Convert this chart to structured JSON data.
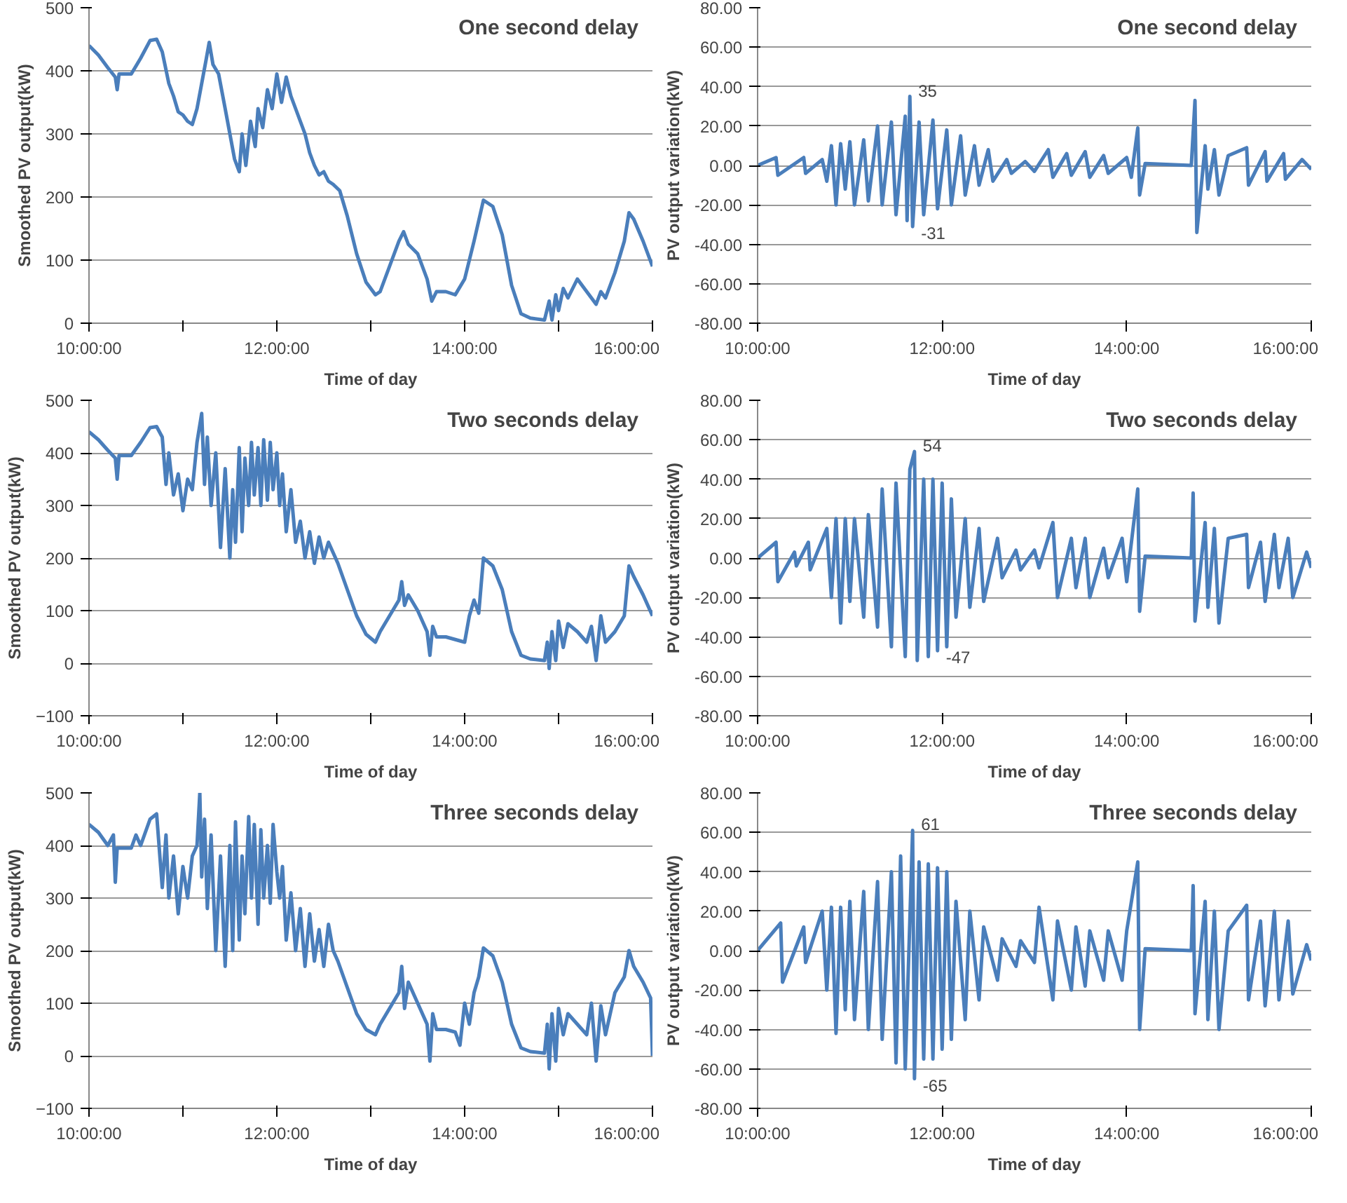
{
  "chart_data": [
    {
      "type": "line",
      "title": "One second delay",
      "xlabel": "Time of day",
      "ylabel": "Smoothed PV output(kW)",
      "color": "#4a7ebb",
      "xlim": [
        10,
        16
      ],
      "xticks": [
        {
          "value": 10,
          "label": "10:00:00"
        },
        {
          "value": 11,
          "label": null
        },
        {
          "value": 12,
          "label": "12:00:00"
        },
        {
          "value": 13,
          "label": null
        },
        {
          "value": 14,
          "label": "14:00:00"
        },
        {
          "value": 15,
          "label": null
        },
        {
          "value": 16,
          "label": "16:00:00"
        }
      ],
      "ylim": [
        0,
        500
      ],
      "yticks": [
        0,
        100,
        200,
        300,
        400,
        500
      ],
      "grid": "y",
      "x": [
        10.0,
        10.1,
        10.2,
        10.28,
        10.3,
        10.32,
        10.45,
        10.55,
        10.65,
        10.72,
        10.78,
        10.85,
        10.9,
        10.95,
        11.0,
        11.05,
        11.1,
        11.15,
        11.2,
        11.25,
        11.28,
        11.32,
        11.38,
        11.45,
        11.5,
        11.55,
        11.6,
        11.63,
        11.67,
        11.72,
        11.77,
        11.8,
        11.85,
        11.9,
        11.95,
        12.0,
        12.05,
        12.1,
        12.15,
        12.2,
        12.25,
        12.3,
        12.35,
        12.4,
        12.45,
        12.5,
        12.55,
        12.6,
        12.67,
        12.75,
        12.85,
        12.95,
        13.05,
        13.1,
        13.2,
        13.3,
        13.35,
        13.4,
        13.5,
        13.6,
        13.65,
        13.7,
        13.8,
        13.9,
        14.0,
        14.1,
        14.2,
        14.3,
        14.4,
        14.5,
        14.6,
        14.7,
        14.85,
        14.9,
        14.93,
        14.97,
        15.0,
        15.05,
        15.1,
        15.2,
        15.3,
        15.4,
        15.45,
        15.5,
        15.6,
        15.7,
        15.75,
        15.8,
        15.9,
        16.0
      ],
      "values": [
        440,
        425,
        405,
        390,
        370,
        395,
        395,
        420,
        448,
        450,
        430,
        380,
        360,
        335,
        330,
        320,
        315,
        340,
        380,
        420,
        445,
        410,
        395,
        340,
        300,
        260,
        240,
        300,
        250,
        320,
        280,
        340,
        310,
        370,
        340,
        395,
        350,
        390,
        360,
        340,
        320,
        300,
        270,
        250,
        235,
        240,
        225,
        220,
        210,
        170,
        110,
        65,
        45,
        50,
        90,
        130,
        145,
        125,
        110,
        70,
        35,
        50,
        50,
        45,
        70,
        130,
        195,
        185,
        140,
        60,
        15,
        8,
        5,
        35,
        5,
        45,
        20,
        55,
        40,
        70,
        50,
        30,
        50,
        40,
        80,
        130,
        175,
        165,
        130,
        90
      ]
    },
    {
      "type": "line",
      "title": "One second delay",
      "xlabel": "Time of day",
      "ylabel": "PV output variation(kW)",
      "color": "#4a7ebb",
      "xlim": [
        10,
        16
      ],
      "xticks": [
        {
          "value": 10,
          "label": "10:00:00"
        },
        {
          "value": 12,
          "label": "12:00:00"
        },
        {
          "value": 14,
          "label": "14:00:00"
        },
        {
          "value": 16,
          "label": "16:00:00"
        }
      ],
      "ylim": [
        -80,
        80
      ],
      "yticks": [
        {
          "value": -80,
          "label": "-80.00"
        },
        {
          "value": -60,
          "label": "-60.00"
        },
        {
          "value": -40,
          "label": "-40.00"
        },
        {
          "value": -20,
          "label": "-20.00"
        },
        {
          "value": 0,
          "label": "0.00"
        },
        {
          "value": 20,
          "label": "20.00"
        },
        {
          "value": 40,
          "label": "40.00"
        },
        {
          "value": 60,
          "label": "60.00"
        },
        {
          "value": 80,
          "label": "80.00"
        }
      ],
      "grid": "y",
      "annotations": [
        {
          "text": "35",
          "x": 11.65,
          "y": 35
        },
        {
          "text": "-31",
          "x": 11.68,
          "y": -31
        }
      ],
      "x": [
        10.0,
        10.2,
        10.22,
        10.5,
        10.52,
        10.7,
        10.75,
        10.8,
        10.85,
        10.9,
        10.95,
        11.0,
        11.05,
        11.15,
        11.2,
        11.3,
        11.35,
        11.45,
        11.5,
        11.6,
        11.62,
        11.65,
        11.68,
        11.75,
        11.8,
        11.9,
        11.95,
        12.05,
        12.1,
        12.2,
        12.25,
        12.35,
        12.4,
        12.5,
        12.55,
        12.7,
        12.75,
        12.9,
        13.0,
        13.15,
        13.2,
        13.35,
        13.4,
        13.55,
        13.6,
        13.75,
        13.8,
        14.0,
        14.05,
        14.12,
        14.14,
        14.2,
        14.7,
        14.74,
        14.76,
        14.85,
        14.88,
        14.95,
        15.0,
        15.1,
        15.3,
        15.32,
        15.5,
        15.52,
        15.7,
        15.72,
        15.9,
        16.0
      ],
      "values": [
        0,
        4,
        -5,
        4,
        -4,
        3,
        -8,
        10,
        -20,
        11,
        -12,
        12,
        -20,
        13,
        -18,
        20,
        -20,
        22,
        -25,
        25,
        -28,
        35,
        -31,
        22,
        -25,
        23,
        -22,
        18,
        -20,
        15,
        -15,
        10,
        -10,
        8,
        -8,
        3,
        -4,
        2,
        -3,
        8,
        -6,
        6,
        -5,
        7,
        -6,
        5,
        -4,
        4,
        -6,
        19,
        -15,
        1,
        0,
        33,
        -34,
        10,
        -12,
        8,
        -15,
        5,
        9,
        -10,
        7,
        -8,
        6,
        -7,
        3,
        -2
      ]
    },
    {
      "type": "line",
      "title": "Two seconds delay",
      "xlabel": "Time of day",
      "ylabel": "Smoothed PV output(kW)",
      "color": "#4a7ebb",
      "xlim": [
        10,
        16
      ],
      "xticks": [
        {
          "value": 10,
          "label": "10:00:00"
        },
        {
          "value": 11,
          "label": null
        },
        {
          "value": 12,
          "label": "12:00:00"
        },
        {
          "value": 13,
          "label": null
        },
        {
          "value": 14,
          "label": "14:00:00"
        },
        {
          "value": 15,
          "label": null
        },
        {
          "value": 16,
          "label": "16:00:00"
        }
      ],
      "ylim": [
        -100,
        500
      ],
      "yticks": [
        -100,
        0,
        100,
        200,
        300,
        400,
        500
      ],
      "grid": "y",
      "x": [
        10.0,
        10.1,
        10.2,
        10.28,
        10.3,
        10.32,
        10.45,
        10.55,
        10.65,
        10.72,
        10.78,
        10.82,
        10.85,
        10.9,
        10.95,
        11.0,
        11.05,
        11.1,
        11.15,
        11.2,
        11.23,
        11.26,
        11.3,
        11.35,
        11.4,
        11.45,
        11.5,
        11.53,
        11.56,
        11.6,
        11.63,
        11.66,
        11.7,
        11.73,
        11.76,
        11.8,
        11.83,
        11.86,
        11.9,
        11.93,
        11.96,
        12.0,
        12.03,
        12.06,
        12.1,
        12.15,
        12.2,
        12.25,
        12.3,
        12.35,
        12.4,
        12.45,
        12.5,
        12.55,
        12.6,
        12.65,
        12.75,
        12.85,
        12.95,
        13.05,
        13.1,
        13.2,
        13.3,
        13.33,
        13.36,
        13.4,
        13.5,
        13.6,
        13.63,
        13.66,
        13.7,
        13.8,
        13.9,
        14.0,
        14.05,
        14.1,
        14.15,
        14.2,
        14.3,
        14.4,
        14.5,
        14.6,
        14.7,
        14.85,
        14.88,
        14.9,
        14.93,
        14.97,
        15.0,
        15.05,
        15.1,
        15.2,
        15.3,
        15.35,
        15.4,
        15.45,
        15.5,
        15.6,
        15.7,
        15.75,
        15.8,
        15.9,
        16.0
      ],
      "values": [
        440,
        425,
        405,
        390,
        350,
        395,
        395,
        420,
        448,
        450,
        430,
        340,
        400,
        320,
        360,
        290,
        350,
        330,
        420,
        475,
        340,
        430,
        300,
        400,
        220,
        370,
        200,
        330,
        230,
        410,
        250,
        390,
        300,
        420,
        320,
        410,
        300,
        425,
        310,
        420,
        330,
        400,
        300,
        360,
        250,
        330,
        230,
        270,
        200,
        250,
        190,
        240,
        200,
        230,
        210,
        190,
        140,
        90,
        55,
        40,
        60,
        90,
        120,
        155,
        110,
        130,
        100,
        60,
        15,
        70,
        50,
        50,
        45,
        40,
        90,
        120,
        95,
        200,
        185,
        140,
        60,
        15,
        8,
        5,
        40,
        -10,
        60,
        5,
        80,
        30,
        75,
        60,
        40,
        70,
        5,
        90,
        40,
        60,
        90,
        185,
        165,
        130,
        90
      ]
    },
    {
      "type": "line",
      "title": "Two seconds delay",
      "xlabel": "Time of day",
      "ylabel": "PV output variation(kW)",
      "color": "#4a7ebb",
      "xlim": [
        10,
        16
      ],
      "xticks": [
        {
          "value": 10,
          "label": "10:00:00"
        },
        {
          "value": 12,
          "label": "12:00:00"
        },
        {
          "value": 14,
          "label": "14:00:00"
        },
        {
          "value": 16,
          "label": "16:00:00"
        }
      ],
      "ylim": [
        -80,
        80
      ],
      "yticks": [
        {
          "value": -80,
          "label": "-80.00"
        },
        {
          "value": -60,
          "label": "-60.00"
        },
        {
          "value": -40,
          "label": "-40.00"
        },
        {
          "value": -20,
          "label": "-20.00"
        },
        {
          "value": 0,
          "label": "0.00"
        },
        {
          "value": 20,
          "label": "20.00"
        },
        {
          "value": 40,
          "label": "40.00"
        },
        {
          "value": 60,
          "label": "60.00"
        },
        {
          "value": 80,
          "label": "80.00"
        }
      ],
      "grid": "y",
      "annotations": [
        {
          "text": "54",
          "x": 11.7,
          "y": 54
        },
        {
          "text": "-47",
          "x": 11.95,
          "y": -47
        }
      ],
      "x": [
        10.0,
        10.2,
        10.22,
        10.4,
        10.42,
        10.55,
        10.57,
        10.75,
        10.8,
        10.85,
        10.9,
        10.95,
        11.0,
        11.05,
        11.15,
        11.2,
        11.3,
        11.35,
        11.45,
        11.5,
        11.6,
        11.65,
        11.7,
        11.73,
        11.8,
        11.85,
        11.9,
        11.95,
        12.0,
        12.05,
        12.1,
        12.15,
        12.25,
        12.3,
        12.4,
        12.45,
        12.6,
        12.65,
        12.8,
        12.85,
        13.0,
        13.05,
        13.2,
        13.25,
        13.4,
        13.45,
        13.55,
        13.6,
        13.75,
        13.8,
        13.95,
        14.0,
        14.12,
        14.14,
        14.2,
        14.7,
        14.72,
        14.74,
        14.85,
        14.88,
        14.95,
        15.0,
        15.1,
        15.3,
        15.32,
        15.45,
        15.5,
        15.6,
        15.65,
        15.75,
        15.8,
        15.95,
        16.0
      ],
      "values": [
        0,
        8,
        -12,
        3,
        -4,
        8,
        -6,
        15,
        -20,
        20,
        -33,
        20,
        -22,
        20,
        -30,
        22,
        -35,
        35,
        -45,
        38,
        -50,
        45,
        54,
        -52,
        40,
        -50,
        40,
        -47,
        38,
        -45,
        30,
        -30,
        20,
        -25,
        15,
        -22,
        10,
        -10,
        4,
        -6,
        4,
        -5,
        18,
        -20,
        10,
        -15,
        10,
        -20,
        5,
        -10,
        10,
        -12,
        35,
        -27,
        1,
        0,
        33,
        -32,
        18,
        -25,
        15,
        -33,
        10,
        12,
        -15,
        8,
        -22,
        12,
        -15,
        10,
        -20,
        3,
        -5
      ]
    },
    {
      "type": "line",
      "title": "Three seconds delay",
      "xlabel": "Time of day",
      "ylabel": "Smoothed PV output(kW)",
      "color": "#4a7ebb",
      "xlim": [
        10,
        16
      ],
      "xticks": [
        {
          "value": 10,
          "label": "10:00:00"
        },
        {
          "value": 11,
          "label": null
        },
        {
          "value": 12,
          "label": "12:00:00"
        },
        {
          "value": 13,
          "label": null
        },
        {
          "value": 14,
          "label": "14:00:00"
        },
        {
          "value": 15,
          "label": null
        },
        {
          "value": 16,
          "label": "16:00:00"
        }
      ],
      "ylim": [
        -100,
        500
      ],
      "yticks": [
        -100,
        0,
        100,
        200,
        300,
        400,
        500
      ],
      "grid": "y",
      "x": [
        10.0,
        10.1,
        10.2,
        10.26,
        10.28,
        10.3,
        10.45,
        10.5,
        10.55,
        10.65,
        10.72,
        10.78,
        10.82,
        10.85,
        10.9,
        10.95,
        11.0,
        11.05,
        11.1,
        11.15,
        11.18,
        11.2,
        11.23,
        11.26,
        11.3,
        11.35,
        11.4,
        11.45,
        11.5,
        11.53,
        11.56,
        11.6,
        11.63,
        11.66,
        11.7,
        11.73,
        11.76,
        11.8,
        11.83,
        11.86,
        11.9,
        11.93,
        11.96,
        12.0,
        12.03,
        12.06,
        12.1,
        12.15,
        12.2,
        12.25,
        12.3,
        12.35,
        12.4,
        12.45,
        12.5,
        12.55,
        12.6,
        12.65,
        12.75,
        12.85,
        12.95,
        13.05,
        13.1,
        13.2,
        13.3,
        13.33,
        13.36,
        13.4,
        13.5,
        13.6,
        13.63,
        13.66,
        13.7,
        13.8,
        13.9,
        13.95,
        14.0,
        14.05,
        14.1,
        14.15,
        14.2,
        14.3,
        14.4,
        14.5,
        14.6,
        14.7,
        14.85,
        14.88,
        14.9,
        14.93,
        14.97,
        15.0,
        15.05,
        15.1,
        15.2,
        15.3,
        15.35,
        15.4,
        15.45,
        15.5,
        15.6,
        15.7,
        15.75,
        15.8,
        15.9,
        15.98,
        16.0
      ],
      "values": [
        440,
        425,
        400,
        420,
        330,
        395,
        395,
        420,
        400,
        450,
        460,
        320,
        420,
        300,
        380,
        270,
        360,
        300,
        380,
        400,
        500,
        340,
        450,
        280,
        420,
        200,
        380,
        170,
        400,
        200,
        445,
        220,
        380,
        270,
        455,
        300,
        440,
        250,
        430,
        300,
        400,
        290,
        440,
        350,
        300,
        360,
        220,
        310,
        200,
        280,
        170,
        270,
        180,
        240,
        170,
        250,
        200,
        180,
        130,
        80,
        50,
        40,
        60,
        90,
        120,
        170,
        90,
        140,
        100,
        60,
        -10,
        80,
        50,
        50,
        45,
        20,
        100,
        60,
        120,
        150,
        205,
        190,
        140,
        60,
        15,
        8,
        5,
        60,
        -25,
        80,
        -10,
        90,
        40,
        80,
        60,
        40,
        100,
        -10,
        95,
        40,
        120,
        150,
        200,
        170,
        140,
        110,
        0
      ]
    },
    {
      "type": "line",
      "title": "Three seconds delay",
      "xlabel": "Time of day",
      "ylabel": "PV output variation(kW)",
      "color": "#4a7ebb",
      "xlim": [
        10,
        16
      ],
      "xticks": [
        {
          "value": 10,
          "label": "10:00:00"
        },
        {
          "value": 12,
          "label": "12:00:00"
        },
        {
          "value": 14,
          "label": "14:00:00"
        },
        {
          "value": 16,
          "label": "16:00:00"
        }
      ],
      "ylim": [
        -80,
        80
      ],
      "yticks": [
        {
          "value": -80,
          "label": "-80.00"
        },
        {
          "value": -60,
          "label": "-60.00"
        },
        {
          "value": -40,
          "label": "-40.00"
        },
        {
          "value": -20,
          "label": "-20.00"
        },
        {
          "value": 0,
          "label": "0.00"
        },
        {
          "value": 20,
          "label": "20.00"
        },
        {
          "value": 40,
          "label": "40.00"
        },
        {
          "value": 60,
          "label": "60.00"
        },
        {
          "value": 80,
          "label": "80.00"
        }
      ],
      "grid": "y",
      "annotations": [
        {
          "text": "61",
          "x": 11.68,
          "y": 61
        },
        {
          "text": "-65",
          "x": 11.7,
          "y": -65
        }
      ],
      "x": [
        10.0,
        10.25,
        10.27,
        10.5,
        10.52,
        10.7,
        10.75,
        10.8,
        10.85,
        10.9,
        10.95,
        11.0,
        11.05,
        11.15,
        11.2,
        11.3,
        11.35,
        11.45,
        11.5,
        11.55,
        11.6,
        11.68,
        11.7,
        11.75,
        11.8,
        11.85,
        11.9,
        11.95,
        12.0,
        12.05,
        12.1,
        12.15,
        12.25,
        12.3,
        12.4,
        12.45,
        12.6,
        12.65,
        12.8,
        12.85,
        13.0,
        13.05,
        13.2,
        13.25,
        13.4,
        13.45,
        13.55,
        13.6,
        13.75,
        13.8,
        13.95,
        14.0,
        14.12,
        14.14,
        14.2,
        14.7,
        14.72,
        14.74,
        14.85,
        14.88,
        14.95,
        15.0,
        15.1,
        15.3,
        15.32,
        15.45,
        15.5,
        15.6,
        15.65,
        15.75,
        15.8,
        15.95,
        16.0
      ],
      "values": [
        0,
        14,
        -16,
        12,
        -6,
        20,
        -20,
        22,
        -42,
        22,
        -30,
        25,
        -35,
        30,
        -40,
        35,
        -45,
        40,
        -57,
        48,
        -60,
        61,
        -65,
        45,
        -55,
        44,
        -55,
        42,
        -50,
        40,
        -45,
        25,
        -35,
        20,
        -25,
        12,
        -15,
        6,
        -8,
        5,
        -6,
        22,
        -25,
        15,
        -20,
        12,
        -18,
        10,
        -15,
        10,
        -15,
        10,
        45,
        -40,
        1,
        0,
        33,
        -32,
        25,
        -35,
        20,
        -40,
        10,
        23,
        -25,
        15,
        -28,
        20,
        -25,
        15,
        -22,
        3,
        -5
      ]
    }
  ]
}
